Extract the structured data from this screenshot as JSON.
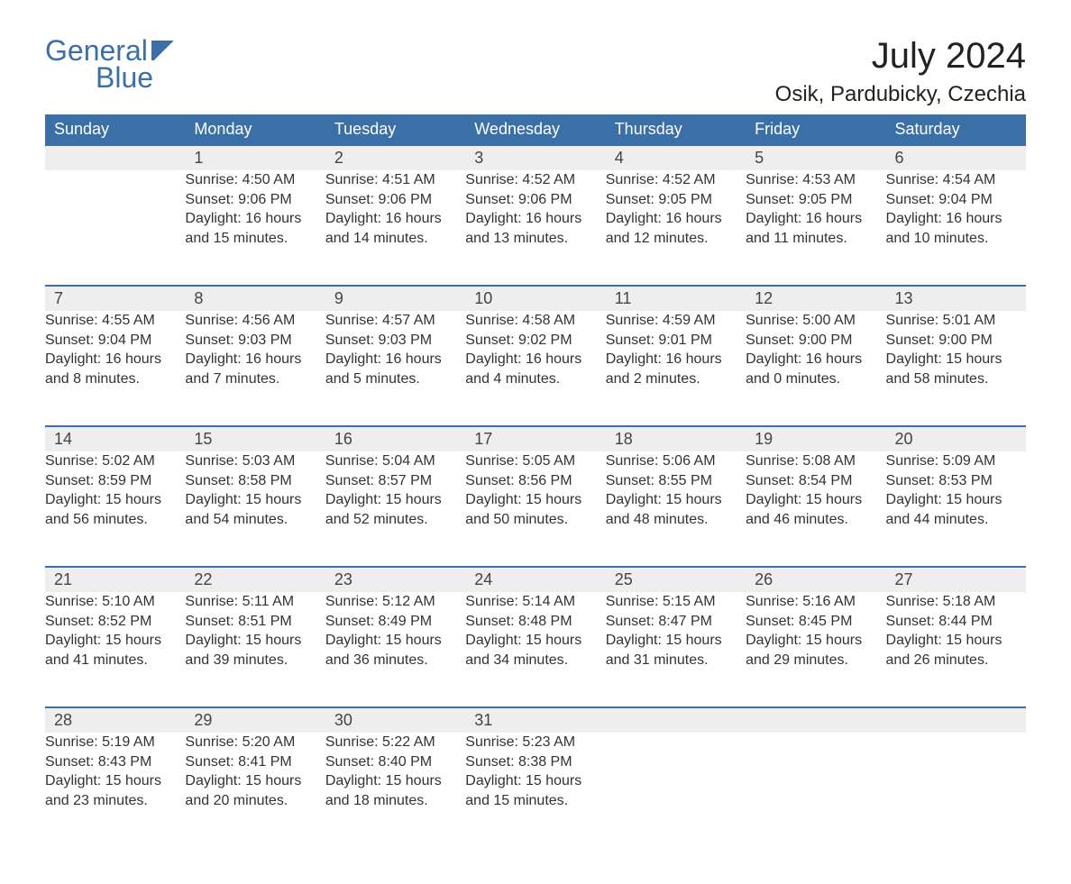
{
  "logo": {
    "line1": "General",
    "line2": "Blue"
  },
  "title": "July 2024",
  "location": "Osik, Pardubicky, Czechia",
  "colors": {
    "header_bg": "#3a6fa8",
    "header_text": "#ffffff",
    "daynum_bg": "#eeeeee",
    "cell_border_top": "#3a6fa8",
    "text": "#333333",
    "background": "#ffffff"
  },
  "typography": {
    "title_fontsize": 40,
    "location_fontsize": 24,
    "header_fontsize": 18,
    "cell_fontsize": 16
  },
  "day_labels": [
    "Sunday",
    "Monday",
    "Tuesday",
    "Wednesday",
    "Thursday",
    "Friday",
    "Saturday"
  ],
  "weeks": [
    [
      null,
      {
        "n": "1",
        "sunrise": "4:50 AM",
        "sunset": "9:06 PM",
        "daylight": "16 hours and 15 minutes."
      },
      {
        "n": "2",
        "sunrise": "4:51 AM",
        "sunset": "9:06 PM",
        "daylight": "16 hours and 14 minutes."
      },
      {
        "n": "3",
        "sunrise": "4:52 AM",
        "sunset": "9:06 PM",
        "daylight": "16 hours and 13 minutes."
      },
      {
        "n": "4",
        "sunrise": "4:52 AM",
        "sunset": "9:05 PM",
        "daylight": "16 hours and 12 minutes."
      },
      {
        "n": "5",
        "sunrise": "4:53 AM",
        "sunset": "9:05 PM",
        "daylight": "16 hours and 11 minutes."
      },
      {
        "n": "6",
        "sunrise": "4:54 AM",
        "sunset": "9:04 PM",
        "daylight": "16 hours and 10 minutes."
      }
    ],
    [
      {
        "n": "7",
        "sunrise": "4:55 AM",
        "sunset": "9:04 PM",
        "daylight": "16 hours and 8 minutes."
      },
      {
        "n": "8",
        "sunrise": "4:56 AM",
        "sunset": "9:03 PM",
        "daylight": "16 hours and 7 minutes."
      },
      {
        "n": "9",
        "sunrise": "4:57 AM",
        "sunset": "9:03 PM",
        "daylight": "16 hours and 5 minutes."
      },
      {
        "n": "10",
        "sunrise": "4:58 AM",
        "sunset": "9:02 PM",
        "daylight": "16 hours and 4 minutes."
      },
      {
        "n": "11",
        "sunrise": "4:59 AM",
        "sunset": "9:01 PM",
        "daylight": "16 hours and 2 minutes."
      },
      {
        "n": "12",
        "sunrise": "5:00 AM",
        "sunset": "9:00 PM",
        "daylight": "16 hours and 0 minutes."
      },
      {
        "n": "13",
        "sunrise": "5:01 AM",
        "sunset": "9:00 PM",
        "daylight": "15 hours and 58 minutes."
      }
    ],
    [
      {
        "n": "14",
        "sunrise": "5:02 AM",
        "sunset": "8:59 PM",
        "daylight": "15 hours and 56 minutes."
      },
      {
        "n": "15",
        "sunrise": "5:03 AM",
        "sunset": "8:58 PM",
        "daylight": "15 hours and 54 minutes."
      },
      {
        "n": "16",
        "sunrise": "5:04 AM",
        "sunset": "8:57 PM",
        "daylight": "15 hours and 52 minutes."
      },
      {
        "n": "17",
        "sunrise": "5:05 AM",
        "sunset": "8:56 PM",
        "daylight": "15 hours and 50 minutes."
      },
      {
        "n": "18",
        "sunrise": "5:06 AM",
        "sunset": "8:55 PM",
        "daylight": "15 hours and 48 minutes."
      },
      {
        "n": "19",
        "sunrise": "5:08 AM",
        "sunset": "8:54 PM",
        "daylight": "15 hours and 46 minutes."
      },
      {
        "n": "20",
        "sunrise": "5:09 AM",
        "sunset": "8:53 PM",
        "daylight": "15 hours and 44 minutes."
      }
    ],
    [
      {
        "n": "21",
        "sunrise": "5:10 AM",
        "sunset": "8:52 PM",
        "daylight": "15 hours and 41 minutes."
      },
      {
        "n": "22",
        "sunrise": "5:11 AM",
        "sunset": "8:51 PM",
        "daylight": "15 hours and 39 minutes."
      },
      {
        "n": "23",
        "sunrise": "5:12 AM",
        "sunset": "8:49 PM",
        "daylight": "15 hours and 36 minutes."
      },
      {
        "n": "24",
        "sunrise": "5:14 AM",
        "sunset": "8:48 PM",
        "daylight": "15 hours and 34 minutes."
      },
      {
        "n": "25",
        "sunrise": "5:15 AM",
        "sunset": "8:47 PM",
        "daylight": "15 hours and 31 minutes."
      },
      {
        "n": "26",
        "sunrise": "5:16 AM",
        "sunset": "8:45 PM",
        "daylight": "15 hours and 29 minutes."
      },
      {
        "n": "27",
        "sunrise": "5:18 AM",
        "sunset": "8:44 PM",
        "daylight": "15 hours and 26 minutes."
      }
    ],
    [
      {
        "n": "28",
        "sunrise": "5:19 AM",
        "sunset": "8:43 PM",
        "daylight": "15 hours and 23 minutes."
      },
      {
        "n": "29",
        "sunrise": "5:20 AM",
        "sunset": "8:41 PM",
        "daylight": "15 hours and 20 minutes."
      },
      {
        "n": "30",
        "sunrise": "5:22 AM",
        "sunset": "8:40 PM",
        "daylight": "15 hours and 18 minutes."
      },
      {
        "n": "31",
        "sunrise": "5:23 AM",
        "sunset": "8:38 PM",
        "daylight": "15 hours and 15 minutes."
      },
      null,
      null,
      null
    ]
  ],
  "labels": {
    "sunrise": "Sunrise: ",
    "sunset": "Sunset: ",
    "daylight": "Daylight: "
  }
}
